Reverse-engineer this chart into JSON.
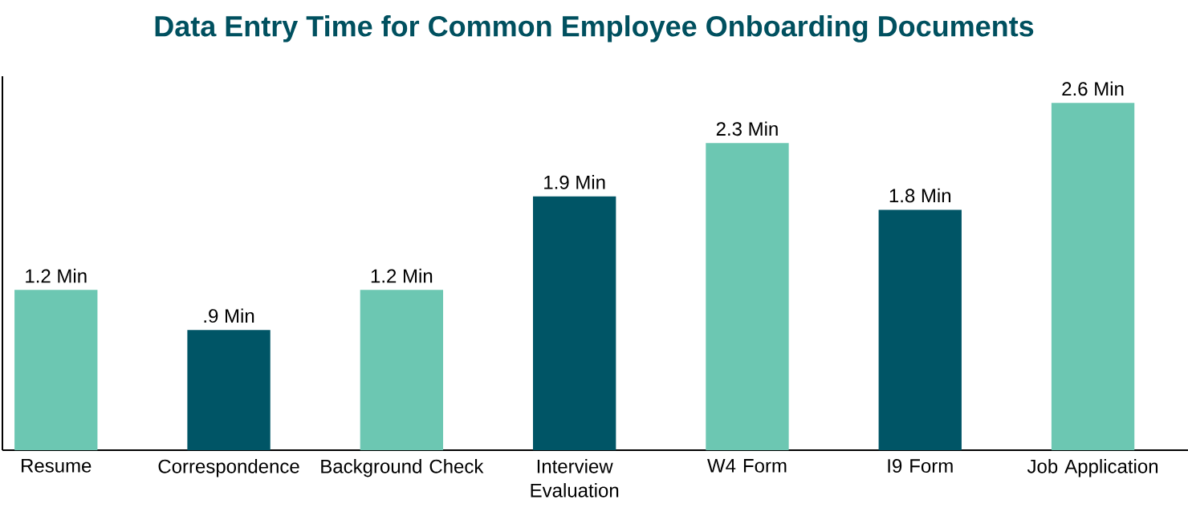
{
  "chart_data": {
    "type": "bar",
    "title": "Data Entry Time for Common Employee Onboarding Documents",
    "categories": [
      "Resume",
      "Correspondence",
      "Background Check",
      "Interview Evaluation",
      "W4 Form",
      "I9 Form",
      "Job Application"
    ],
    "values": [
      1.2,
      0.9,
      1.2,
      1.9,
      2.3,
      1.8,
      2.6
    ],
    "value_labels": [
      "1.2 Min",
      ".9 Min",
      "1.2 Min",
      "1.9 Min",
      "2.3 Min",
      "1.8 Min",
      "2.6 Min"
    ],
    "colors": [
      "#6cc7b2",
      "#005566",
      "#6cc7b2",
      "#005566",
      "#6cc7b2",
      "#005566",
      "#6cc7b2"
    ],
    "ylim": [
      0,
      2.8
    ],
    "tick_labels": "x"
  }
}
